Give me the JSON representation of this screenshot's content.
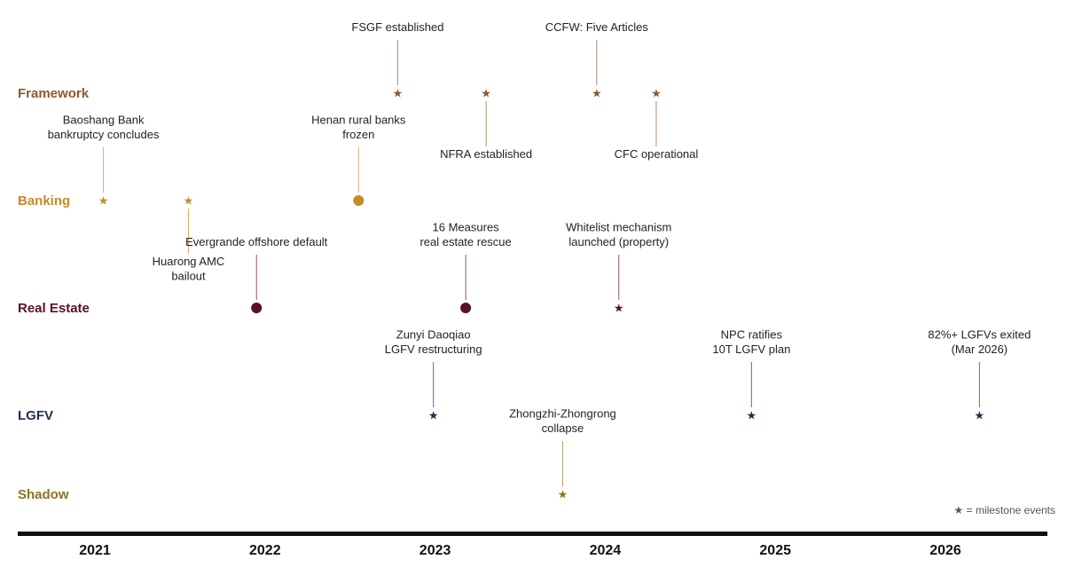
{
  "lanes": [
    {
      "key": "framework",
      "label": "Framework",
      "color": "#8b5a2b"
    },
    {
      "key": "banking",
      "label": "Banking",
      "color": "#c8892b"
    },
    {
      "key": "realestate",
      "label": "Real Estate",
      "color": "#5c1020"
    },
    {
      "key": "lgfv",
      "label": "LGFV",
      "color": "#1e2d55"
    },
    {
      "key": "shadow",
      "label": "Shadow",
      "color": "#8a7420"
    }
  ],
  "years": [
    "2021",
    "2022",
    "2023",
    "2024",
    "2025",
    "2026"
  ],
  "events": [
    {
      "lane": "framework",
      "date": 2022.78,
      "marker": "star",
      "label": [
        "FSGF established"
      ],
      "side": "above"
    },
    {
      "lane": "framework",
      "date": 2023.3,
      "marker": "star",
      "label": [
        "NFRA established"
      ],
      "side": "below"
    },
    {
      "lane": "framework",
      "date": 2023.95,
      "marker": "star",
      "label": [
        "CCFW: Five Articles"
      ],
      "side": "above"
    },
    {
      "lane": "framework",
      "date": 2024.3,
      "marker": "star",
      "label": [
        "CFC operational"
      ],
      "side": "below"
    },
    {
      "lane": "banking",
      "date": 2021.05,
      "marker": "star",
      "label": [
        "Baoshang Bank",
        "bankruptcy concludes"
      ],
      "side": "above"
    },
    {
      "lane": "banking",
      "date": 2021.55,
      "marker": "star",
      "label": [
        "Huarong AMC",
        "bailout"
      ],
      "side": "below"
    },
    {
      "lane": "banking",
      "date": 2022.55,
      "marker": "circle",
      "label": [
        "Henan rural banks",
        "frozen"
      ],
      "side": "above"
    },
    {
      "lane": "realestate",
      "date": 2021.95,
      "marker": "circle",
      "label": [
        "Evergrande offshore default"
      ],
      "side": "above"
    },
    {
      "lane": "realestate",
      "date": 2023.18,
      "marker": "circle",
      "label": [
        "16 Measures",
        "real estate rescue"
      ],
      "side": "above"
    },
    {
      "lane": "realestate",
      "date": 2024.08,
      "marker": "star",
      "label": [
        "Whitelist mechanism",
        "launched (property)"
      ],
      "side": "above"
    },
    {
      "lane": "lgfv",
      "date": 2022.99,
      "marker": "star",
      "label": [
        "Zunyi Daoqiao",
        "LGFV restructuring"
      ],
      "side": "above"
    },
    {
      "lane": "lgfv",
      "date": 2024.86,
      "marker": "star",
      "label": [
        "NPC ratifies",
        "10T LGFV plan"
      ],
      "side": "above"
    },
    {
      "lane": "lgfv",
      "date": 2026.2,
      "marker": "star",
      "label": [
        "82%+ LGFVs exited",
        "(Mar 2026)"
      ],
      "side": "above"
    },
    {
      "lane": "shadow",
      "date": 2023.75,
      "marker": "star",
      "label": [
        "Zhongzhi-Zhongrong",
        "collapse"
      ],
      "side": "above"
    }
  ],
  "legend": "★ = milestone events"
}
